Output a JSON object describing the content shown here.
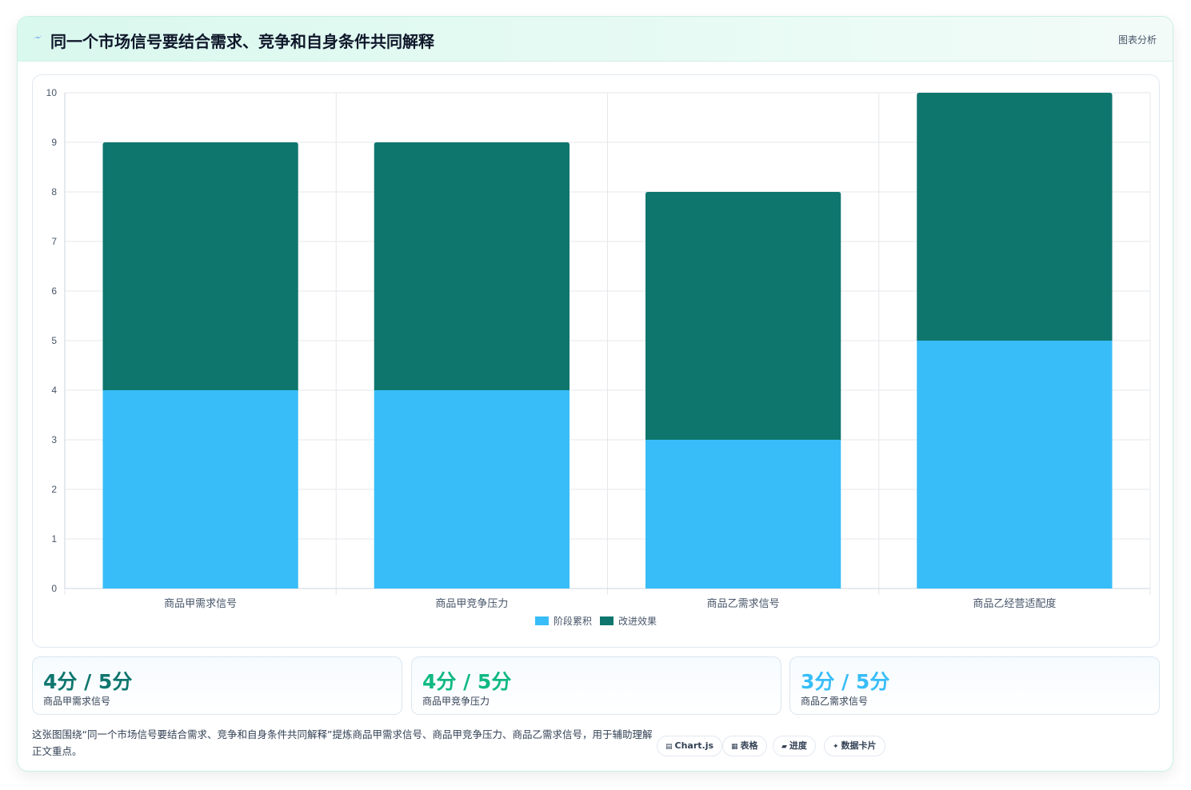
{
  "header": {
    "icon": "lightning-icon",
    "title": "同一个市场信号要结合需求、竞争和自身条件共同解释",
    "tag": "图表分析"
  },
  "colors": {
    "stage": "#38bdf8",
    "improve": "#0f766e",
    "green": "#10b981",
    "sky": "#38bdf8",
    "teal": "#0f766e"
  },
  "chart_data": {
    "type": "bar",
    "stacked": true,
    "categories": [
      "商品甲需求信号",
      "商品甲竞争压力",
      "商品乙需求信号",
      "商品乙经营适配度"
    ],
    "series": [
      {
        "name": "阶段累积",
        "values": [
          4,
          4,
          3,
          5
        ],
        "color": "#38bdf8"
      },
      {
        "name": "改进效果",
        "values": [
          5,
          5,
          5,
          5
        ],
        "color": "#0f766e"
      }
    ],
    "ylim": [
      0,
      10
    ],
    "yticks": [
      "0",
      "1",
      "2",
      "3",
      "4",
      "5",
      "6",
      "7",
      "8",
      "9",
      "10"
    ],
    "grid": true,
    "legend": "bottom"
  },
  "stats": [
    {
      "value": "4分 / 5分",
      "label": "商品甲需求信号",
      "color": "#0f766e"
    },
    {
      "value": "4分 / 5分",
      "label": "商品甲竞争压力",
      "color": "#10b981"
    },
    {
      "value": "3分 / 5分",
      "label": "商品乙需求信号",
      "color": "#38bdf8"
    }
  ],
  "description": "这张图围绕“同一个市场信号要结合需求、竞争和自身条件共同解释”提炼商品甲需求信号、商品甲竞争压力、商品乙需求信号，用于辅助理解正文重点。",
  "chips": [
    {
      "icon": "▤",
      "label": "Chart.js"
    },
    {
      "icon": "▦",
      "label": "表格"
    },
    {
      "icon": "▰",
      "label": "进度"
    },
    {
      "icon": "✦",
      "label": "数据卡片"
    }
  ]
}
